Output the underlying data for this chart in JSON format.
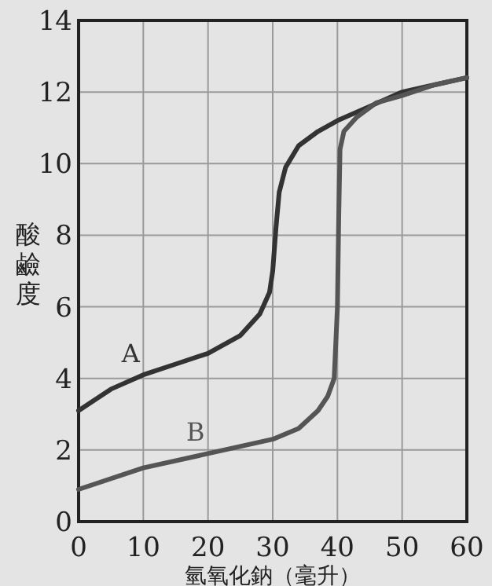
{
  "chart_data": {
    "type": "line",
    "xlabel": "氫氧化鈉（毫升）",
    "ylabel": "酸鹼度",
    "xlim": [
      0,
      60
    ],
    "ylim": [
      0,
      14
    ],
    "xticks": [
      0,
      10,
      20,
      30,
      40,
      50,
      60
    ],
    "yticks": [
      0,
      2,
      4,
      6,
      8,
      10,
      12,
      14
    ],
    "grid": true,
    "series": [
      {
        "name": "A",
        "color": "#333333",
        "x": [
          0,
          5,
          10,
          15,
          20,
          25,
          28,
          29.5,
          30,
          30.5,
          31,
          32,
          34,
          37,
          40,
          45,
          50,
          55,
          60
        ],
        "values": [
          3.1,
          3.7,
          4.1,
          4.4,
          4.7,
          5.2,
          5.8,
          6.4,
          7.0,
          8.2,
          9.2,
          9.9,
          10.5,
          10.9,
          11.2,
          11.6,
          12.0,
          12.2,
          12.4
        ]
      },
      {
        "name": "B",
        "color": "#555555",
        "x": [
          0,
          10,
          20,
          30,
          34,
          37,
          38.5,
          39.5,
          40,
          40.2,
          40.4,
          41,
          43,
          46,
          50,
          55,
          60
        ],
        "values": [
          0.9,
          1.5,
          1.9,
          2.3,
          2.6,
          3.1,
          3.5,
          4.0,
          6.0,
          8.5,
          10.4,
          10.9,
          11.3,
          11.7,
          11.9,
          12.2,
          12.4
        ]
      }
    ]
  }
}
